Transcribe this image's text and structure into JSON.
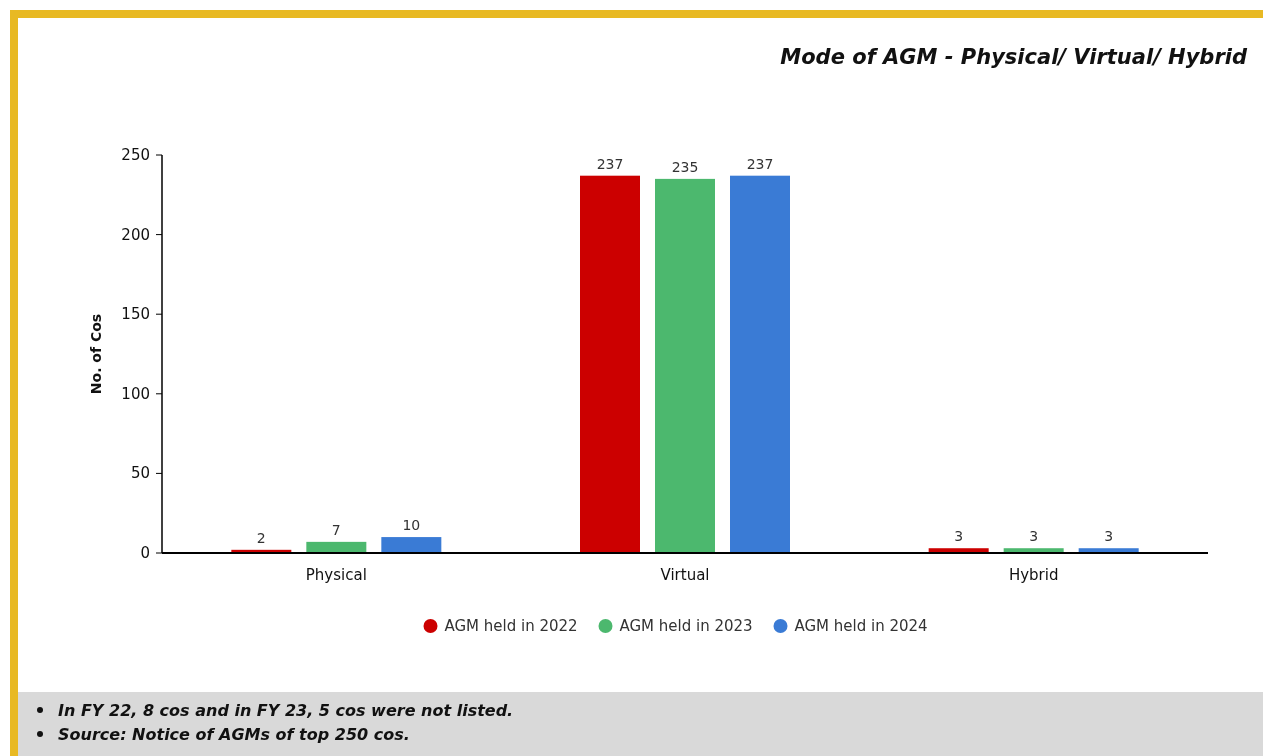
{
  "chart_data": {
    "type": "bar",
    "title": "Mode of AGM - Physical/ Virtual/ Hybrid",
    "ylabel": "No. of Cos",
    "categories": [
      "Physical",
      "Virtual",
      "Hybrid"
    ],
    "series": [
      {
        "name": "AGM held in 2022",
        "color": "#cc0000",
        "values": [
          2,
          237,
          3
        ]
      },
      {
        "name": "AGM held in 2023",
        "color": "#4cb86e",
        "values": [
          7,
          235,
          3
        ]
      },
      {
        "name": "AGM held in 2024",
        "color": "#3a7bd5",
        "values": [
          10,
          237,
          3
        ]
      }
    ],
    "ylim": [
      0,
      250
    ],
    "yticks": [
      0,
      50,
      100,
      150,
      200,
      250
    ],
    "grid": false,
    "legend": "bottom",
    "data_labels": true,
    "annotations": [
      "In FY 22, 8 cos and in FY 23, 5 cos were not listed.",
      "Source: Notice of AGMs of top 250 cos."
    ]
  }
}
